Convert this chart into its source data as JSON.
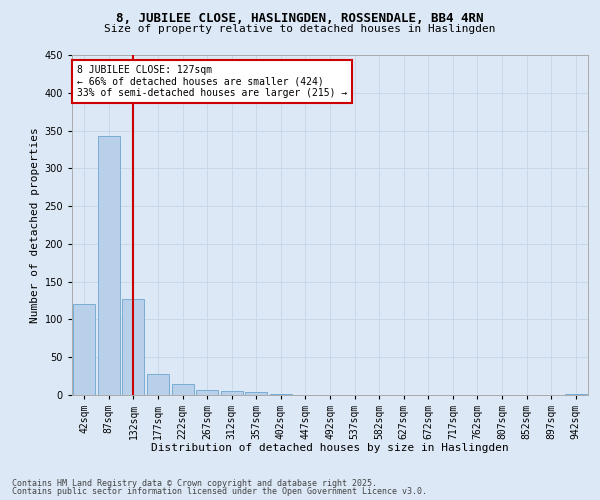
{
  "title1": "8, JUBILEE CLOSE, HASLINGDEN, ROSSENDALE, BB4 4RN",
  "title2": "Size of property relative to detached houses in Haslingden",
  "xlabel": "Distribution of detached houses by size in Haslingden",
  "ylabel": "Number of detached properties",
  "categories": [
    "42sqm",
    "87sqm",
    "132sqm",
    "177sqm",
    "222sqm",
    "267sqm",
    "312sqm",
    "357sqm",
    "402sqm",
    "447sqm",
    "492sqm",
    "537sqm",
    "582sqm",
    "627sqm",
    "672sqm",
    "717sqm",
    "762sqm",
    "807sqm",
    "852sqm",
    "897sqm",
    "942sqm"
  ],
  "values": [
    121,
    343,
    127,
    28,
    14,
    7,
    5,
    4,
    1,
    0,
    0,
    0,
    0,
    0,
    0,
    0,
    0,
    0,
    0,
    0,
    1
  ],
  "bar_color": "#b8d0ea",
  "bar_edge_color": "#7aadd4",
  "grid_color": "#c8d8ea",
  "background_color": "#dce8f5",
  "vline_x_index": 2,
  "vline_color": "#cc0000",
  "annotation_text": "8 JUBILEE CLOSE: 127sqm\n← 66% of detached houses are smaller (424)\n33% of semi-detached houses are larger (215) →",
  "annotation_box_facecolor": "#ffffff",
  "annotation_box_edgecolor": "#cc0000",
  "ylim": [
    0,
    450
  ],
  "yticks": [
    0,
    50,
    100,
    150,
    200,
    250,
    300,
    350,
    400,
    450
  ],
  "footer1": "Contains HM Land Registry data © Crown copyright and database right 2025.",
  "footer2": "Contains public sector information licensed under the Open Government Licence v3.0.",
  "title1_fontsize": 9,
  "title2_fontsize": 8,
  "tick_fontsize": 7,
  "ylabel_fontsize": 8,
  "xlabel_fontsize": 8,
  "footer_fontsize": 6
}
